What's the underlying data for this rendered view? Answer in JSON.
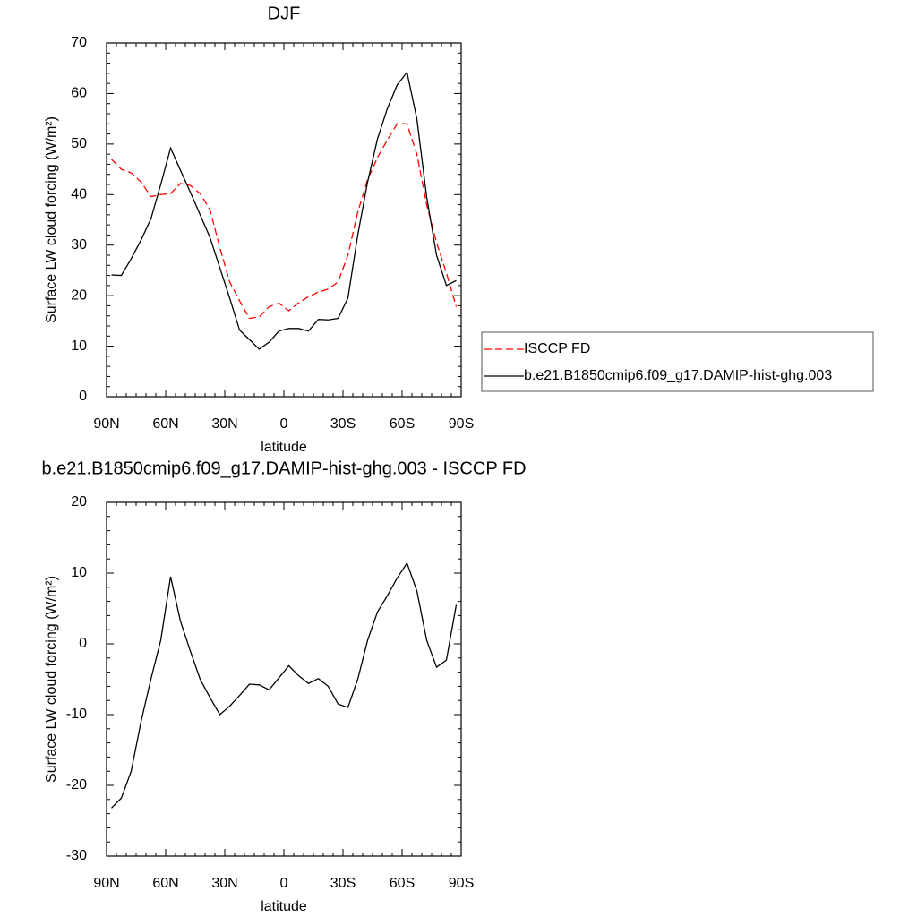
{
  "chart_data": [
    {
      "type": "line",
      "title": "DJF",
      "xlabel": "latitude",
      "ylabel": "Surface LW cloud forcing (W/m²)",
      "x": [
        87.5,
        82.5,
        77.5,
        72.5,
        67.5,
        62.5,
        57.5,
        52.5,
        47.5,
        42.5,
        37.5,
        32.5,
        27.5,
        22.5,
        17.5,
        12.5,
        7.5,
        2.5,
        -2.5,
        -7.5,
        -12.5,
        -17.5,
        -22.5,
        -27.5,
        -32.5,
        -37.5,
        -42.5,
        -47.5,
        -52.5,
        -57.5,
        -62.5,
        -67.5,
        -72.5,
        -77.5,
        -82.5,
        -87.5
      ],
      "series": [
        {
          "name": "ISCCP FD",
          "color": "#ff0000",
          "dash": true,
          "values": [
            47,
            45,
            44.3,
            42.5,
            39.6,
            40,
            40.2,
            42.2,
            41.8,
            40.2,
            37,
            29.5,
            22.7,
            19,
            15.5,
            15.8,
            17.8,
            18.5,
            17,
            18.6,
            19.8,
            20.7,
            21.3,
            22.7,
            28,
            36.5,
            43,
            47.3,
            50.8,
            54,
            54,
            48,
            38,
            30.5,
            24.5,
            17.8
          ]
        },
        {
          "name": "b.e21.B1850cmip6.f09_g17.DAMIP-hist-ghg.003",
          "color": "#000000",
          "dash": false,
          "values": [
            24.1,
            24,
            27.3,
            31,
            35.2,
            42,
            49.2,
            44.8,
            40.5,
            36,
            31.5,
            25.5,
            19.5,
            13.2,
            11.3,
            9.4,
            10.8,
            13,
            13.5,
            13.5,
            13,
            15.3,
            15.2,
            15.5,
            19.5,
            32,
            42.5,
            51,
            57,
            61.7,
            64.2,
            55,
            39.5,
            28,
            22,
            23
          ]
        }
      ],
      "xlim": [
        90,
        -90
      ],
      "xticks": [
        {
          "value": 90,
          "label": "90N"
        },
        {
          "value": 60,
          "label": "60N"
        },
        {
          "value": 30,
          "label": "30N"
        },
        0,
        {
          "value": -30,
          "label": "30S"
        },
        {
          "value": -60,
          "label": "60S"
        },
        {
          "value": -90,
          "label": "90S"
        }
      ],
      "ylim": [
        0,
        70
      ],
      "yticks": [
        0,
        10,
        20,
        30,
        40,
        50,
        60,
        70
      ],
      "legend": "right"
    },
    {
      "type": "line",
      "title": "b.e21.B1850cmip6.f09_g17.DAMIP-hist-ghg.003 - ISCCP FD",
      "xlabel": "latitude",
      "ylabel": "Surface LW cloud forcing (W/m²)",
      "x": [
        87.5,
        82.5,
        77.5,
        72.5,
        67.5,
        62.5,
        57.5,
        52.5,
        47.5,
        42.5,
        37.5,
        32.5,
        27.5,
        22.5,
        17.5,
        12.5,
        7.5,
        2.5,
        -2.5,
        -7.5,
        -12.5,
        -17.5,
        -22.5,
        -27.5,
        -32.5,
        -37.5,
        -42.5,
        -47.5,
        -52.5,
        -57.5,
        -62.5,
        -67.5,
        -72.5,
        -77.5,
        -82.5,
        -87.5
      ],
      "series": [
        {
          "color": "#000000",
          "dash": false,
          "values": [
            -23.2,
            -21.8,
            -18,
            -11,
            -5,
            0.5,
            9.5,
            3.2,
            -1,
            -5,
            -7.6,
            -10,
            -8.8,
            -7.3,
            -5.7,
            -5.8,
            -6.5,
            -4.8,
            -3.1,
            -4.5,
            -5.6,
            -4.9,
            -6,
            -8.5,
            -9,
            -5,
            0.5,
            4.5,
            6.8,
            9.3,
            11.4,
            7.5,
            0.5,
            -3.3,
            -2.3,
            5.5
          ]
        }
      ],
      "xlim": [
        90,
        -90
      ],
      "xticks": [
        {
          "value": 90,
          "label": "90N"
        },
        {
          "value": 60,
          "label": "60N"
        },
        {
          "value": 30,
          "label": "30N"
        },
        0,
        {
          "value": -30,
          "label": "30S"
        },
        {
          "value": -60,
          "label": "60S"
        },
        {
          "value": -90,
          "label": "90S"
        }
      ],
      "ylim": [
        -30,
        20
      ],
      "yticks": [
        -30,
        -20,
        -10,
        0,
        10,
        20
      ]
    }
  ]
}
